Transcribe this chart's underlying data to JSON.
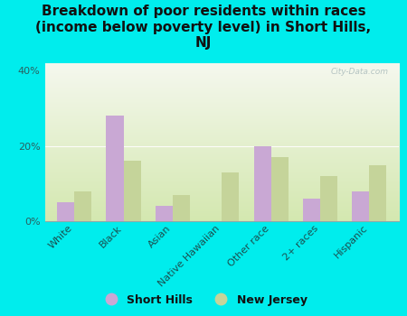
{
  "title": "Breakdown of poor residents within races\n(income below poverty level) in Short Hills,\nNJ",
  "categories": [
    "White",
    "Black",
    "Asian",
    "Native Hawaiian",
    "Other race",
    "2+ races",
    "Hispanic"
  ],
  "short_hills": [
    5,
    28,
    4,
    0,
    20,
    6,
    8
  ],
  "new_jersey": [
    8,
    16,
    7,
    13,
    17,
    12,
    15
  ],
  "short_hills_color": "#c9a8d4",
  "new_jersey_color": "#c5d49a",
  "bg_outer": "#00eded",
  "ylim": [
    0,
    42
  ],
  "yticks": [
    0,
    20,
    40
  ],
  "ytick_labels": [
    "0%",
    "20%",
    "40%"
  ],
  "bar_width": 0.35,
  "watermark": "City-Data.com",
  "legend_labels": [
    "Short Hills",
    "New Jersey"
  ],
  "title_fontsize": 11,
  "tick_fontsize": 8,
  "legend_fontsize": 9,
  "tick_color": "#2a6060",
  "label_color": "#1a5050"
}
